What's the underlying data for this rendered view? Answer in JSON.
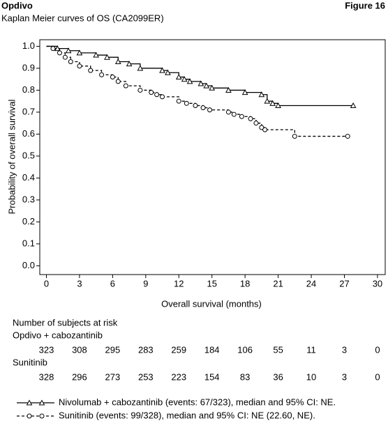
{
  "chart_data": {
    "type": "step",
    "header_left": "Opdivo",
    "header_right": "Figure 16",
    "title": "Kaplan Meier curves of OS (CA2099ER)",
    "x_label": "Overall survival (months)",
    "y_label": "Probability of overall survival",
    "xlim": [
      -0.6,
      30.7
    ],
    "ylim": [
      -0.04,
      1.03
    ],
    "xticks": [
      0,
      3,
      6,
      9,
      12,
      15,
      18,
      21,
      24,
      27,
      30
    ],
    "yticks": [
      {
        "value": 0,
        "label": "0.0"
      },
      0.1,
      0.2,
      0.3,
      0.4,
      0.5,
      0.6,
      0.7,
      0.8,
      0.9,
      {
        "value": 1,
        "label": "1.0"
      }
    ],
    "grid": false,
    "series": [
      {
        "name": "Nivolumab + cabozantinib (events: 67/323), median and 95% CI: NE.",
        "color": "#000000",
        "marker": "triangle",
        "dash": "solid",
        "x": [
          0,
          1.0,
          2.0,
          3.0,
          4.5,
          5.5,
          6.5,
          7.5,
          8.5,
          10.5,
          11.0,
          12.0,
          12.5,
          13.0,
          14.0,
          14.5,
          15.0,
          16.5,
          18.0,
          19.5,
          20.0,
          20.5,
          21.0,
          27.8
        ],
        "values": [
          1.0,
          0.99,
          0.98,
          0.97,
          0.96,
          0.95,
          0.93,
          0.92,
          0.9,
          0.89,
          0.88,
          0.86,
          0.85,
          0.84,
          0.83,
          0.82,
          0.81,
          0.8,
          0.79,
          0.78,
          0.75,
          0.74,
          0.73,
          0.73
        ]
      },
      {
        "name": "Sunitinib (events: 99/328), median and 95% CI: NE (22.60, NE).",
        "color": "#000000",
        "marker": "circle",
        "dash": "dashed",
        "x": [
          0,
          0.6,
          1.2,
          1.7,
          2.2,
          3.0,
          4.0,
          5.0,
          6.0,
          6.5,
          7.2,
          8.5,
          9.5,
          10.0,
          10.5,
          12.0,
          12.7,
          13.5,
          14.2,
          14.8,
          16.5,
          17.0,
          17.7,
          18.5,
          19.0,
          19.5,
          19.8,
          22.5,
          27.3
        ],
        "values": [
          1.0,
          0.99,
          0.97,
          0.95,
          0.93,
          0.91,
          0.89,
          0.87,
          0.86,
          0.84,
          0.82,
          0.8,
          0.79,
          0.78,
          0.77,
          0.75,
          0.74,
          0.73,
          0.72,
          0.71,
          0.7,
          0.69,
          0.68,
          0.67,
          0.65,
          0.63,
          0.62,
          0.59,
          0.59
        ]
      }
    ],
    "risk_table": {
      "title": "Number of subjects at risk",
      "rows": [
        {
          "name": "Opdivo + cabozantinib",
          "values": [
            323,
            308,
            295,
            283,
            259,
            184,
            106,
            55,
            11,
            3,
            0
          ]
        },
        {
          "name": "Sunitinib",
          "values": [
            328,
            296,
            273,
            253,
            223,
            154,
            83,
            36,
            10,
            3,
            0
          ]
        }
      ]
    }
  }
}
